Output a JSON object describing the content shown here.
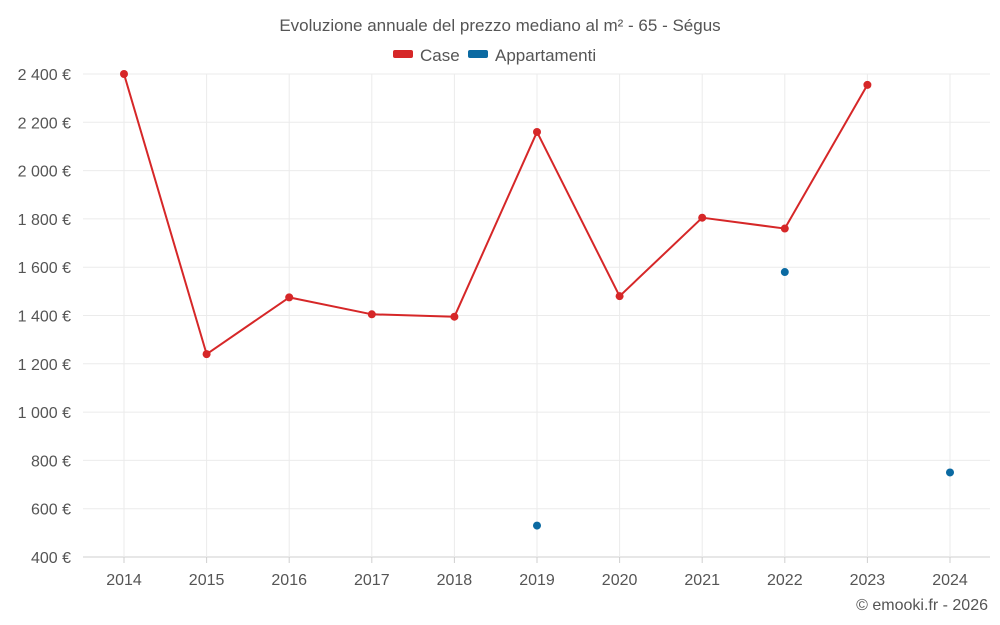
{
  "chart_data": {
    "type": "line",
    "title": "Evoluzione annuale del prezzo mediano al m² - 65 - Ségus",
    "categories": [
      "2014",
      "2015",
      "2016",
      "2017",
      "2018",
      "2019",
      "2020",
      "2021",
      "2022",
      "2023",
      "2024"
    ],
    "series": [
      {
        "name": "Case",
        "color": "#d62728",
        "style": "line+markers",
        "values": [
          2400,
          1240,
          1475,
          1405,
          1395,
          2160,
          1480,
          1805,
          1760,
          2355,
          null
        ]
      },
      {
        "name": "Appartamenti",
        "color": "#0b6aa2",
        "style": "markers",
        "values": [
          null,
          null,
          null,
          null,
          null,
          530,
          null,
          null,
          1580,
          null,
          750
        ]
      }
    ],
    "yticks": [
      400,
      600,
      800,
      1000,
      1200,
      1400,
      1600,
      1800,
      2000,
      2200,
      2400
    ],
    "ytick_labels": [
      "400 €",
      "600 €",
      "800 €",
      "1 000 €",
      "1 200 €",
      "1 400 €",
      "1 600 €",
      "1 800 €",
      "2 000 €",
      "2 200 €",
      "2 400 €"
    ],
    "ylim": [
      400,
      2400
    ],
    "xlabel": "",
    "ylabel": "",
    "grid": true,
    "legend": "top-center"
  },
  "credit": "© emooki.fr - 2026"
}
